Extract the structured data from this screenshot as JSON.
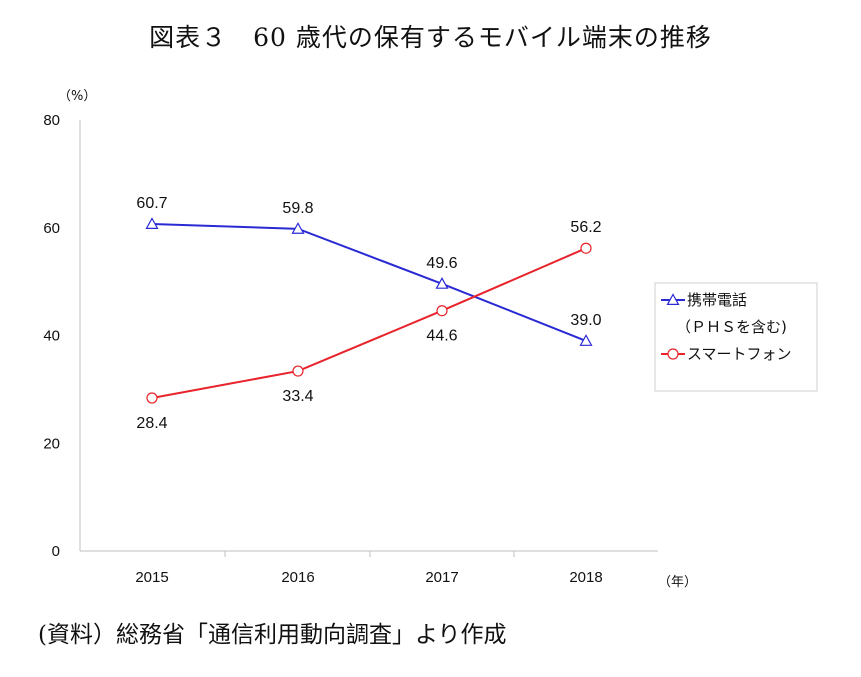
{
  "title": "図表３　60 歳代の保有するモバイル端末の推移",
  "source": "(資料）総務省「通信利用動向調査」より作成",
  "chart_data": {
    "type": "line",
    "y_unit": "（%）",
    "x_unit": "（年）",
    "categories": [
      "2015",
      "2016",
      "2017",
      "2018"
    ],
    "ylim": [
      0,
      80
    ],
    "yticks": [
      "0",
      "20",
      "40",
      "60",
      "80"
    ],
    "grid": false,
    "legend_position": "right",
    "series": [
      {
        "name_line1": "携帯電話",
        "name_line2": "（ＰＨＳを含む)",
        "marker": "triangle",
        "color": "#2a2ad4",
        "values": [
          60.7,
          59.8,
          49.6,
          39.0
        ],
        "labels": [
          "60.7",
          "59.8",
          "49.6",
          "39.0"
        ]
      },
      {
        "name_line1": "スマートフォン",
        "marker": "circle",
        "color": "#e8232b",
        "values": [
          28.4,
          33.4,
          44.6,
          56.2
        ],
        "labels": [
          "28.4",
          "33.4",
          "44.6",
          "56.2"
        ]
      }
    ]
  }
}
